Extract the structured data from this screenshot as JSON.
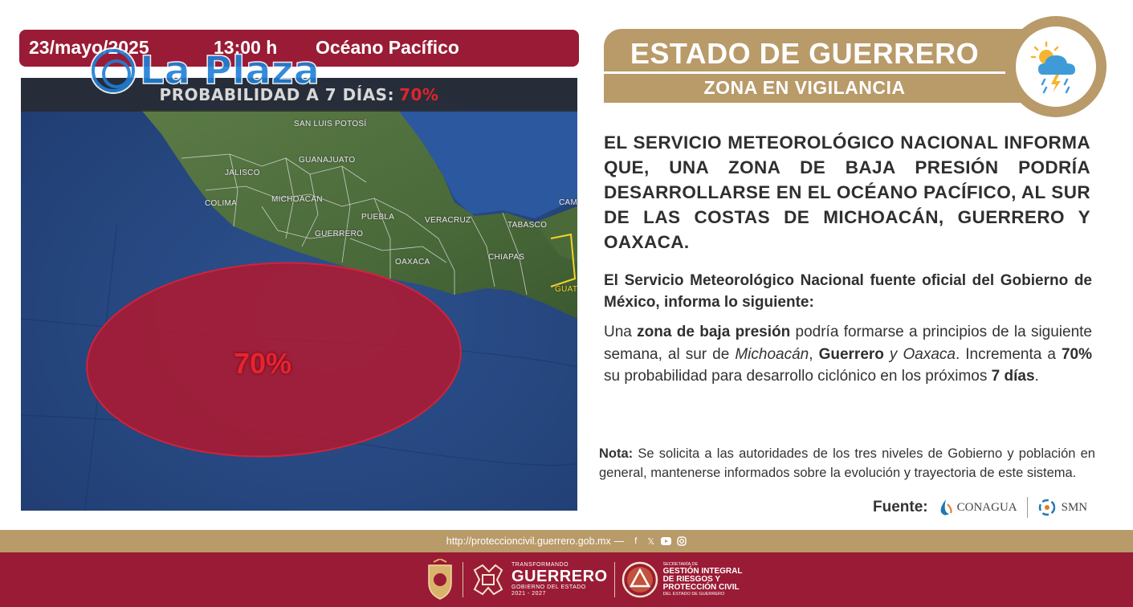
{
  "header": {
    "date": "23/mayo/2025",
    "time": "13:00 h",
    "region": "Océano Pacífico"
  },
  "map": {
    "banner_prefix": "PROBABILIDAD A 7 DÍAS:",
    "banner_pct": "70%",
    "watermark": "La Plaza",
    "zone_probability": 0.7,
    "zone_label": "70%",
    "zone_color": "#b2182e",
    "labels": {
      "jalisco": "Jalisco",
      "san_luis": "San Luis Potosí",
      "guanajuato": "Guanajuato",
      "colima": "Colima",
      "michoacan": "Michoacán",
      "puebla": "Puebla",
      "veracruz": "Veracruz",
      "guerrero": "Guerrero",
      "oaxaca": "Oaxaca",
      "tabasco": "Tabasco",
      "chiapas": "Chiapas",
      "campeche": "Camp",
      "guatemala": "Guat"
    }
  },
  "title": {
    "main": "ESTADO DE GUERRERO",
    "sub": "ZONA EN VIGILANCIA"
  },
  "headline": "EL SERVICIO METEOROLÓGICO NACIONAL INFORMA QUE, UNA ZONA DE BAJA PRESIÓN PODRÍA DESARROLLARSE EN EL OCÉANO PACÍFICO, AL SUR DE LAS COSTAS DE MICHOACÁN, GUERRERO Y OAXACA.",
  "subheadline": "El Servicio Meteorológico Nacional fuente oficial del Gobierno de México, informa lo siguiente:",
  "body": {
    "t1": "Una ",
    "b1": "zona de baja presión",
    "t2": " podría formarse a principios de la siguiente semana, al sur de ",
    "i1": "Michoacán",
    "t3": ", ",
    "b2": "Guerrero",
    "i2": " y Oaxaca",
    "t4": ". Incrementa a ",
    "b3": "70%",
    "t5": " su probabilidad para desarrollo ciclónico en los próximos ",
    "b4": "7 días",
    "t6": "."
  },
  "note": {
    "label": "Nota:",
    "text": " Se solicita a las autoridades de los tres niveles de Gobierno y población en general, mantenerse informados sobre la evolución y trayectoria de este sistema."
  },
  "fuente": {
    "label": "Fuente:",
    "org1": "CONAGUA",
    "org2": "SMN"
  },
  "footer": {
    "url": "http://proteccioncivil.guerrero.gob.mx",
    "dash": "—",
    "icons": [
      "facebook-icon",
      "x-icon",
      "youtube-icon",
      "instagram-icon"
    ],
    "gob_top": "TRANSFORMANDO",
    "gob_big": "GUERRERO",
    "gob_sub": "GOBIERNO DEL ESTADO",
    "gob_years": "2021 - 2027",
    "sec_top": "SECRETARÍA DE",
    "sec_l1": "GESTIÓN INTEGRAL",
    "sec_l2": "DE RIESGOS Y",
    "sec_l3": "PROTECCIÓN CIVIL",
    "sec_bottom": "DEL ESTADO DE GUERRERO"
  },
  "colors": {
    "maroon": "#9a1b35",
    "gold": "#b99a69",
    "ocean": "#27467f",
    "land": "#4c6a3d",
    "zone": "#b2182e"
  }
}
